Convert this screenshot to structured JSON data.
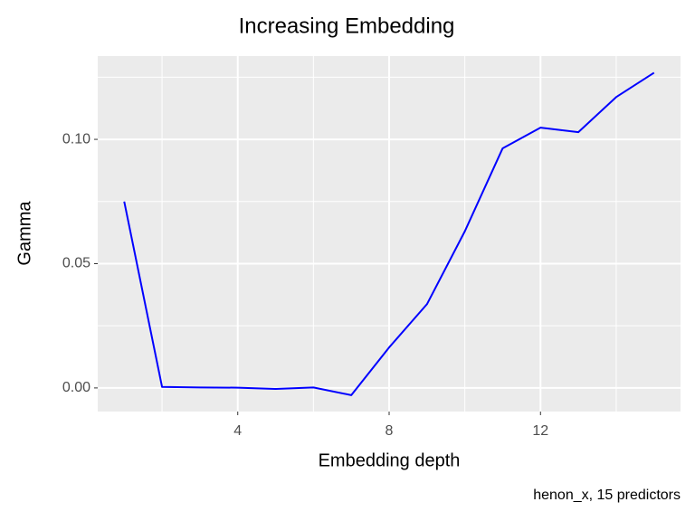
{
  "chart_data": {
    "type": "line",
    "title": "Increasing Embedding",
    "x_label": "Embedding depth",
    "y_label": "Gamma",
    "caption": "henon_x, 15 predictors",
    "x": [
      1,
      2,
      3,
      4,
      5,
      6,
      7,
      8,
      9,
      10,
      11,
      12,
      13,
      14,
      15
    ],
    "series": [
      {
        "color": "#0000ff",
        "values": [
          0.075,
          0.0004,
          0.0002,
          0.0001,
          -0.0004,
          0.0002,
          -0.0029,
          0.0163,
          0.0337,
          0.063,
          0.0964,
          0.1047,
          0.1029,
          0.117,
          0.1268
        ]
      }
    ],
    "xlim": [
      0.3,
      15.7
    ],
    "ylim": [
      -0.0095,
      0.1335
    ],
    "xticks": [
      4,
      8,
      12
    ],
    "yticks": [
      {
        "value": 0,
        "label": "0.00"
      },
      {
        "value": 0.05,
        "label": "0.05"
      },
      {
        "value": 0.1,
        "label": "0.10"
      }
    ],
    "minor_xticks": [
      2,
      6,
      10,
      14
    ],
    "minor_yticks": [
      0.025,
      0.075,
      0.125
    ],
    "grid": true
  }
}
